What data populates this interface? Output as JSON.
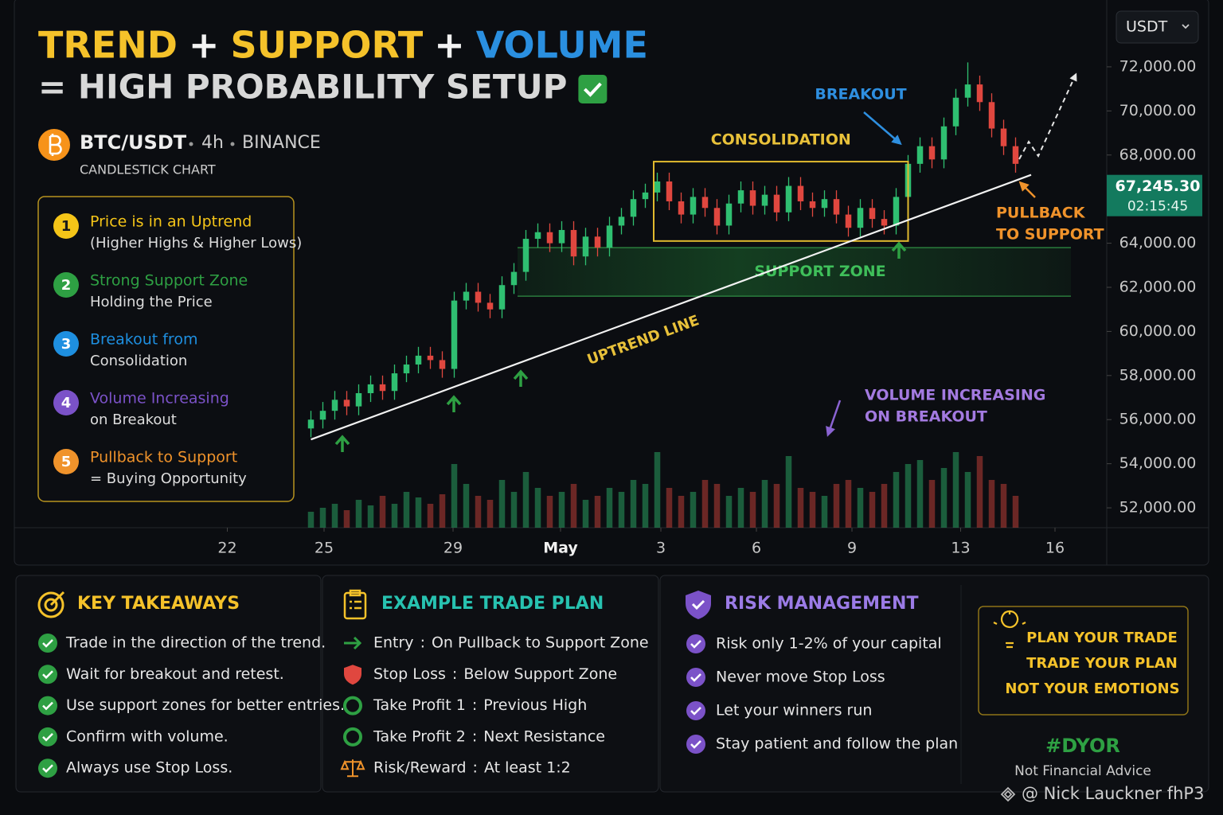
{
  "header": {
    "title_parts": [
      "TREND",
      "+",
      "SUPPORT",
      "+",
      "VOLUME"
    ],
    "title_colors": [
      "#f5c22a",
      "#f2f2f2",
      "#f5c22a",
      "#f2f2f2",
      "#2a8fe0"
    ],
    "title_line2": "= HIGH PROBABILITY SETUP",
    "symbol": "BTC/USDT",
    "interval": "4h",
    "exchange": "BINANCE",
    "chart_kind": "CANDLESTICK CHART",
    "currency": "USDT"
  },
  "checklist": [
    {
      "number": 1,
      "title": "Price is in an Uptrend",
      "detail": "(Higher Highs & Higher Lows)",
      "color": "#f5c518"
    },
    {
      "number": 2,
      "title": "Strong Support Zone",
      "detail": "Holding the Price",
      "color": "#2ea043"
    },
    {
      "number": 3,
      "title": "Breakout from",
      "detail": "Consolidation",
      "color": "#1e8fe0"
    },
    {
      "number": 4,
      "title": "Volume Increasing",
      "detail": "on Breakout",
      "color": "#7b52c8"
    },
    {
      "number": 5,
      "title": "Pullback to Support",
      "detail": "= Buying Opportunity",
      "color": "#f0932b"
    }
  ],
  "chart_data": {
    "type": "candlestick",
    "open": [
      55600,
      56000,
      56400,
      56900,
      56600,
      57200,
      57600,
      57300,
      58100,
      58500,
      58900,
      58700,
      58300,
      61400,
      61800,
      61300,
      61000,
      62100,
      62700,
      64200,
      64500,
      64000,
      64600,
      63400,
      64300,
      63800,
      64800,
      65200,
      66000,
      66300,
      66800,
      65900,
      65300,
      66100,
      65600,
      64800,
      65800,
      66400,
      65700,
      66200,
      65400,
      66600,
      65900,
      65600,
      66000,
      65300,
      64700,
      65600,
      65100,
      64800,
      66100,
      67600,
      68400,
      67800,
      69300,
      70600,
      71200,
      70400,
      69200,
      68400
    ],
    "high": [
      56400,
      56800,
      57300,
      57300,
      57600,
      58000,
      58000,
      58500,
      58900,
      59300,
      59300,
      59100,
      61800,
      62200,
      62200,
      61700,
      62500,
      63100,
      64600,
      64900,
      64900,
      65000,
      65000,
      64700,
      64700,
      65200,
      65600,
      66400,
      66700,
      67200,
      67200,
      66300,
      66500,
      66500,
      66000,
      66200,
      66800,
      66800,
      66600,
      66600,
      67000,
      67000,
      66300,
      66400,
      66400,
      65700,
      66000,
      66000,
      65500,
      66500,
      68000,
      68800,
      68800,
      69700,
      71000,
      72200,
      71600,
      70800,
      69600,
      68800
    ],
    "low": [
      55200,
      55600,
      56000,
      56200,
      56200,
      56800,
      56900,
      56900,
      57700,
      58100,
      58300,
      57900,
      57900,
      61000,
      60900,
      60600,
      60600,
      61700,
      62300,
      63800,
      63600,
      63600,
      63000,
      63000,
      63400,
      63400,
      64400,
      64800,
      65600,
      65900,
      65500,
      64900,
      64900,
      65200,
      64400,
      64400,
      65400,
      65300,
      65300,
      65000,
      65000,
      65500,
      65200,
      65200,
      64900,
      64300,
      64300,
      64700,
      64400,
      64400,
      65700,
      67200,
      67400,
      67400,
      68900,
      70200,
      70000,
      68800,
      68000,
      67200
    ],
    "close": [
      56000,
      56400,
      56900,
      56600,
      57200,
      57600,
      57300,
      58100,
      58500,
      58900,
      58700,
      58300,
      61400,
      61800,
      61300,
      61000,
      62100,
      62700,
      64200,
      64500,
      64000,
      64600,
      63400,
      64300,
      63800,
      64800,
      65200,
      66000,
      66300,
      66800,
      65900,
      65300,
      66100,
      65600,
      64800,
      65800,
      66400,
      65700,
      66200,
      65400,
      66600,
      65900,
      65600,
      66000,
      65300,
      64700,
      65600,
      65100,
      64800,
      66100,
      67600,
      68400,
      67800,
      69300,
      70600,
      71200,
      70400,
      69200,
      68400,
      67600
    ],
    "volume": [
      20,
      25,
      30,
      22,
      35,
      28,
      40,
      30,
      45,
      38,
      30,
      42,
      80,
      55,
      40,
      35,
      60,
      45,
      70,
      50,
      40,
      45,
      55,
      35,
      40,
      50,
      45,
      60,
      55,
      95,
      50,
      40,
      45,
      60,
      55,
      40,
      50,
      45,
      60,
      55,
      90,
      50,
      45,
      40,
      55,
      60,
      50,
      45,
      55,
      70,
      80,
      85,
      60,
      75,
      95,
      70,
      90,
      60,
      55,
      40
    ],
    "up_color": "#2fbf71",
    "down_color": "#e0473f",
    "xlim": [
      -24.7,
      66.5
    ],
    "xticks": [
      {
        "value": -7,
        "label": "22"
      },
      {
        "value": 1.1,
        "label": "25"
      },
      {
        "value": 11.9,
        "label": "29"
      },
      {
        "value": 20.9,
        "label": "May"
      },
      {
        "value": 29.3,
        "label": "3"
      },
      {
        "value": 37.3,
        "label": "6"
      },
      {
        "value": 45.3,
        "label": "9"
      },
      {
        "value": 54.4,
        "label": "13"
      },
      {
        "value": 62.3,
        "label": "16"
      }
    ],
    "ylim": [
      51100,
      75030
    ],
    "yticks": [
      {
        "value": 52000,
        "label": "52,000.00"
      },
      {
        "value": 54000,
        "label": "54,000.00"
      },
      {
        "value": 56000,
        "label": "56,000.00"
      },
      {
        "value": 58000,
        "label": "58,000.00"
      },
      {
        "value": 60000,
        "label": "60,000.00"
      },
      {
        "value": 62000,
        "label": "62,000.00"
      },
      {
        "value": 64000,
        "label": "64,000.00"
      },
      {
        "value": 66000,
        "label": "66,000.00"
      },
      {
        "value": 68000,
        "label": "68,000.00"
      },
      {
        "value": 70000,
        "label": "70,000.00"
      },
      {
        "value": 72000,
        "label": "72,000.00"
      }
    ],
    "current_price": {
      "value": 67245.3,
      "label": "67,245.30"
    },
    "countdown": "02:15:45",
    "support_zone": {
      "label": "SUPPORT ZONE",
      "y": [
        61600,
        63800
      ]
    },
    "consolidation": {
      "label": "CONSOLIDATION",
      "x": [
        28.7,
        50
      ],
      "y": [
        64100,
        67700
      ]
    },
    "uptrend": {
      "label": "UPTREND LINE",
      "x": [
        0,
        60.3
      ],
      "y": [
        55100,
        67100
      ]
    },
    "annotations": {
      "breakout": "BREAKOUT",
      "pullback": [
        "PULLBACK",
        "TO SUPPORT"
      ],
      "volume": [
        "VOLUME INCREASING",
        "ON BREAKOUT"
      ]
    }
  },
  "key_takeaways": {
    "title": "KEY TAKEAWAYS",
    "items": [
      "Trade in the direction of the trend.",
      "Wait for breakout and retest.",
      "Use support zones for better entries.",
      "Confirm with volume.",
      "Always use Stop Loss."
    ]
  },
  "trade_plan": {
    "title": "EXAMPLE TRADE PLAN",
    "separator": ":",
    "items": [
      {
        "label": "Entry",
        "value": "On Pullback to Support Zone"
      },
      {
        "label": "Stop Loss",
        "value": "Below Support Zone"
      },
      {
        "label": "Take Profit 1",
        "value": "Previous High"
      },
      {
        "label": "Take Profit 2",
        "value": "Next Resistance"
      },
      {
        "label": "Risk/Reward",
        "value": "At least 1:2"
      }
    ]
  },
  "risk_management": {
    "title": "RISK MANAGEMENT",
    "items": [
      "Risk only 1-2% of your capital",
      "Never move Stop Loss",
      "Let your winners run",
      "Stay patient and follow the plan"
    ]
  },
  "motto": {
    "lines": [
      "PLAN YOUR TRADE",
      "TRADE YOUR PLAN",
      "NOT YOUR EMOTIONS"
    ],
    "tag": "#DYOR",
    "disclaimer": "Not Financial Advice"
  },
  "watermark": "@ Nick Lauckner fhP3"
}
